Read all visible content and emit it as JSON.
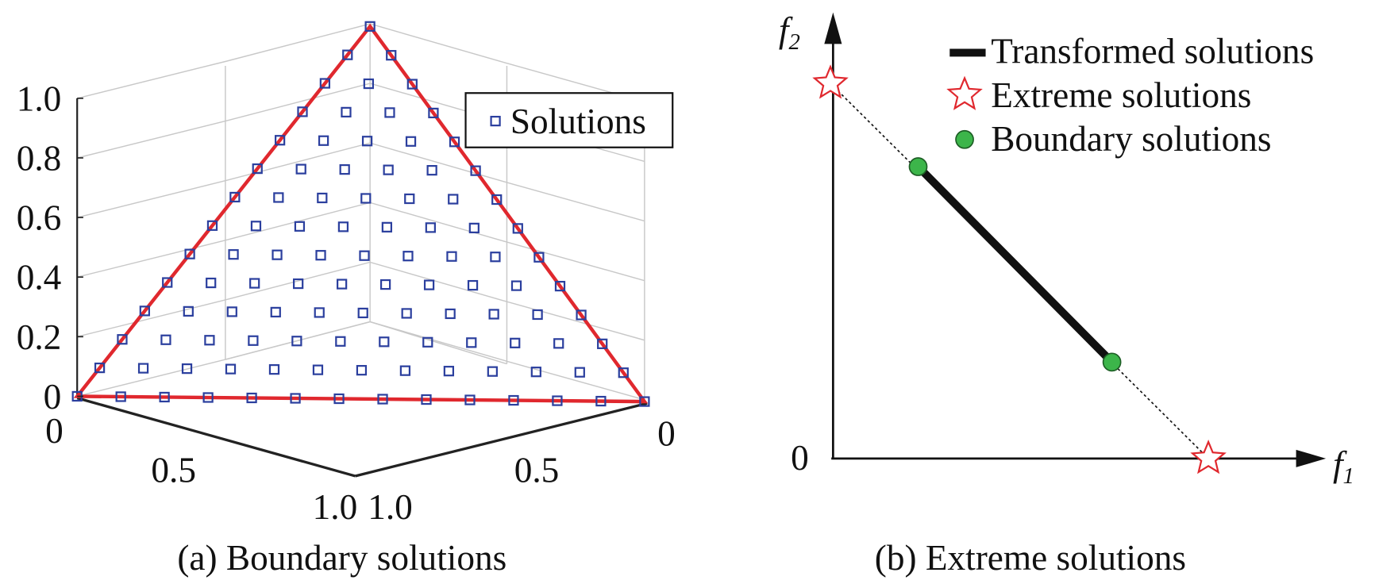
{
  "panel_a": {
    "caption": "(a) Boundary solutions",
    "z_ticks": [
      "1.0",
      "0.8",
      "0.6",
      "0.4",
      "0.2",
      "0"
    ],
    "left_floor_ticks": [
      "0",
      "0.5",
      "1.0"
    ],
    "right_floor_ticks": [
      "1.0",
      "0.5",
      "0"
    ],
    "legend": "Solutions"
  },
  "panel_b": {
    "caption": "(b) Extreme solutions",
    "y_axis": {
      "symbol": "f",
      "subscript": "2"
    },
    "x_axis": {
      "symbol": "f",
      "subscript": "1"
    },
    "origin": "0",
    "legend": [
      "Transformed solutions",
      "Extreme solutions",
      "Boundary solutions"
    ]
  }
}
